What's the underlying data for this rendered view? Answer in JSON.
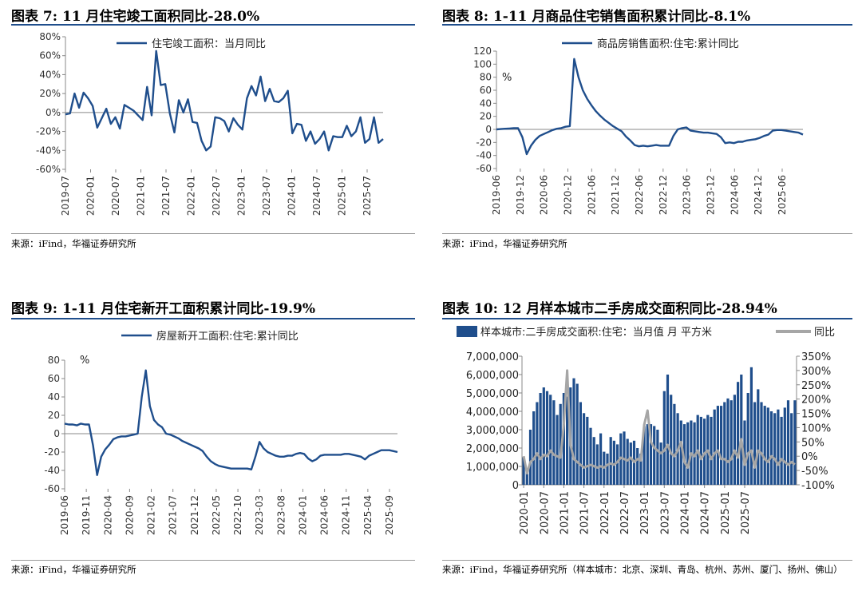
{
  "charts": [
    {
      "title": "图表 7:  11 月住宅竣工面积同比-28.0%",
      "source": "来源：iFind，华福证券研究所",
      "chart_data": {
        "type": "line",
        "legend": "住宅竣工面积：当月同比",
        "legend_position": "top",
        "color": "#1f4e8c",
        "ylim": [
          -60,
          80
        ],
        "yticks": [
          "80%",
          "60%",
          "40%",
          "20%",
          "0%",
          "-20%",
          "-40%",
          "-60%"
        ],
        "xticks": [
          "2019-07",
          "2020-01",
          "2020-07",
          "2021-01",
          "2021-07",
          "2022-01",
          "2022-07",
          "2023-01",
          "2023-07",
          "2024-01",
          "2024-07",
          "2025-01",
          "2025-07"
        ],
        "series": [
          {
            "values": [
              -2,
              -1,
              20,
              5,
              21,
              15,
              7,
              -16,
              -6,
              4,
              -12,
              -5,
              -17,
              8,
              5,
              2,
              -3,
              -8,
              27,
              -3,
              65,
              29,
              30,
              -1,
              -21,
              13,
              0,
              14,
              -10,
              -11,
              -30,
              -40,
              -36,
              -5,
              -6,
              -9,
              -20,
              -6,
              -13,
              -18,
              15,
              28,
              18,
              38,
              12,
              25,
              12,
              11,
              15,
              23,
              -22,
              -12,
              -13,
              -30,
              -20,
              -33,
              -28,
              -20,
              -40,
              -25,
              -26,
              -26,
              -14,
              -25,
              -20,
              -5,
              -32,
              -28,
              -5,
              -32,
              -28
            ]
          }
        ]
      }
    },
    {
      "title": "图表 8:  1-11 月商品住宅销售面积累计同比-8.1%",
      "source": "来源：iFind，华福证券研究所",
      "chart_data": {
        "type": "line",
        "legend": "商品房销售面积:住宅:累计同比",
        "legend_position": "top",
        "unit_label": "%",
        "color": "#1f4e8c",
        "ylim": [
          -60,
          120
        ],
        "yticks": [
          "120",
          "100",
          "80",
          "60",
          "40",
          "20",
          "0",
          "-20",
          "-40",
          "-60"
        ],
        "xticks": [
          "2019-06",
          "2019-12",
          "2020-06",
          "2020-12",
          "2021-06",
          "2021-12",
          "2022-06",
          "2022-12",
          "2023-06",
          "2023-12",
          "2024-06",
          "2024-12",
          "2025-06"
        ],
        "series": [
          {
            "values": [
              0,
              0.5,
              1,
              1.3,
              1.8,
              2,
              -12,
              -38,
              -25,
              -16,
              -10,
              -7,
              -4,
              -1,
              1,
              2,
              4,
              5,
              108,
              80,
              60,
              47,
              37,
              28,
              21,
              15,
              10,
              5,
              1,
              -3,
              -11,
              -17,
              -24,
              -26,
              -25,
              -26,
              -25,
              -24,
              -25,
              -25,
              -25,
              -10,
              0,
              2,
              3,
              -2,
              -3,
              -4,
              -5,
              -5,
              -6,
              -7,
              -12,
              -21,
              -20,
              -21,
              -19,
              -19,
              -17,
              -16,
              -15,
              -13,
              -10,
              -8,
              -2,
              -1,
              -1,
              -2,
              -3,
              -4,
              -5,
              -8
            ]
          }
        ]
      }
    },
    {
      "title": "图表 9:  1-11 月住宅新开工面积累计同比-19.9%",
      "source": "来源：iFind，华福证券研究所",
      "chart_data": {
        "type": "line",
        "legend": "房屋新开工面积:住宅:累计同比",
        "legend_position": "top",
        "unit_label": "%",
        "color": "#1f4e8c",
        "ylim": [
          -60,
          80
        ],
        "yticks": [
          "80",
          "60",
          "40",
          "20",
          "0",
          "-20",
          "-40",
          "-60"
        ],
        "xticks": [
          "2019-06",
          "2019-11",
          "2020-04",
          "2020-09",
          "2021-02",
          "2021-07",
          "2021-12",
          "2022-05",
          "2022-10",
          "2023-03",
          "2023-08",
          "2024-01",
          "2024-06",
          "2024-11",
          "2025-04",
          "2025-09"
        ],
        "series": [
          {
            "values": [
              11,
              10,
              10,
              9,
              11,
              10,
              10,
              -13,
              -45,
              -25,
              -17,
              -12,
              -6,
              -4,
              -3,
              -3,
              -2,
              -1,
              0,
              40,
              69,
              30,
              15,
              10,
              7,
              0,
              -1,
              -3,
              -5,
              -8,
              -10,
              -12,
              -14,
              -16,
              -19,
              -25,
              -30,
              -33,
              -35,
              -36,
              -37,
              -38,
              -38,
              -38,
              -38,
              -38,
              -39,
              -25,
              -9,
              -16,
              -20,
              -22,
              -24,
              -25,
              -25,
              -24,
              -24,
              -22,
              -21,
              -22,
              -27,
              -30,
              -28,
              -24,
              -23,
              -23,
              -23,
              -23,
              -23,
              -22,
              -22,
              -23,
              -24,
              -25,
              -28,
              -24,
              -22,
              -20,
              -18,
              -18,
              -18,
              -19,
              -20
            ]
          }
        ]
      }
    },
    {
      "title": "图表 10:  12 月样本城市二手房成交面积同比-28.94%",
      "source": "来源：iFind，华福证券研究所（样本城市：北京、深圳、青岛、杭州、苏州、厦门、扬州、佛山）",
      "chart_data": {
        "type": "bar+line",
        "legend_bar": "样本城市:二手房成交面积:住宅：当月值 月 平方米",
        "legend_line": "同比",
        "legend_position": "top",
        "bar_color": "#1f4e8c",
        "line_color": "#a6a6a6",
        "ylim_left": [
          0,
          7000000
        ],
        "ylim_right": [
          -100,
          350
        ],
        "yticks_left": [
          "7,000,000",
          "6,000,000",
          "5,000,000",
          "4,000,000",
          "3,000,000",
          "2,000,000",
          "1,000,000",
          "0"
        ],
        "yticks_right": [
          "350%",
          "300%",
          "250%",
          "200%",
          "150%",
          "100%",
          "50%",
          "0%",
          "-50%",
          "-100%"
        ],
        "xticks": [
          "2020-01",
          "2020-07",
          "2021-01",
          "2021-07",
          "2022-01",
          "2022-07",
          "2023-01",
          "2023-07",
          "2024-01",
          "2024-07",
          "2025-01",
          "2025-07"
        ],
        "series": [
          {
            "name": "样本城市:二手房成交面积:住宅：当月值 月 平方米",
            "values": [
              1500000,
              700000,
              3000000,
              4000000,
              4500000,
              5000000,
              5300000,
              5100000,
              4900000,
              4600000,
              3800000,
              4400000,
              5000000,
              4800000,
              5300000,
              5800000,
              5500000,
              4500000,
              3900000,
              3700000,
              3100000,
              2600000,
              2200000,
              2800000,
              1800000,
              1700000,
              2600000,
              2400000,
              2200000,
              2800000,
              2900000,
              2500000,
              2300000,
              2400000,
              2000000,
              1700000,
              3200000,
              3300000,
              3300000,
              3200000,
              3000000,
              2300000,
              5100000,
              6000000,
              4900000,
              4400000,
              3900000,
              3500000,
              3300000,
              3400000,
              3500000,
              3400000,
              3800000,
              3700000,
              3600000,
              3800000,
              3700000,
              4100000,
              4300000,
              4300000,
              4500000,
              4700000,
              4600000,
              4900000,
              5600000,
              6000000,
              3500000,
              5000000,
              6400000,
              4500000,
              5200000,
              4500000,
              4300000,
              4200000,
              4000000,
              3900000,
              4100000,
              3700000,
              4200000,
              4600000,
              3900000,
              4600000
            ]
          },
          {
            "name": "同比",
            "values": [
              0,
              -60,
              -20,
              -10,
              10,
              -10,
              5,
              0,
              20,
              5,
              0,
              -5,
              110,
              300,
              40,
              -10,
              -20,
              -30,
              -40,
              -35,
              -30,
              -35,
              -40,
              -35,
              -40,
              -30,
              -25,
              -30,
              -20,
              -5,
              -10,
              -15,
              -5,
              -20,
              -10,
              -15,
              110,
              160,
              50,
              30,
              20,
              10,
              20,
              40,
              10,
              0,
              20,
              50,
              -20,
              -40,
              10,
              0,
              20,
              -10,
              10,
              20,
              -10,
              10,
              20,
              -10,
              -10,
              -20,
              -10,
              20,
              -5,
              60,
              -30,
              10,
              20,
              -40,
              20,
              10,
              -10,
              -20,
              0,
              -10,
              -30,
              -10,
              -20,
              -30,
              -20,
              -29
            ]
          }
        ]
      }
    }
  ]
}
